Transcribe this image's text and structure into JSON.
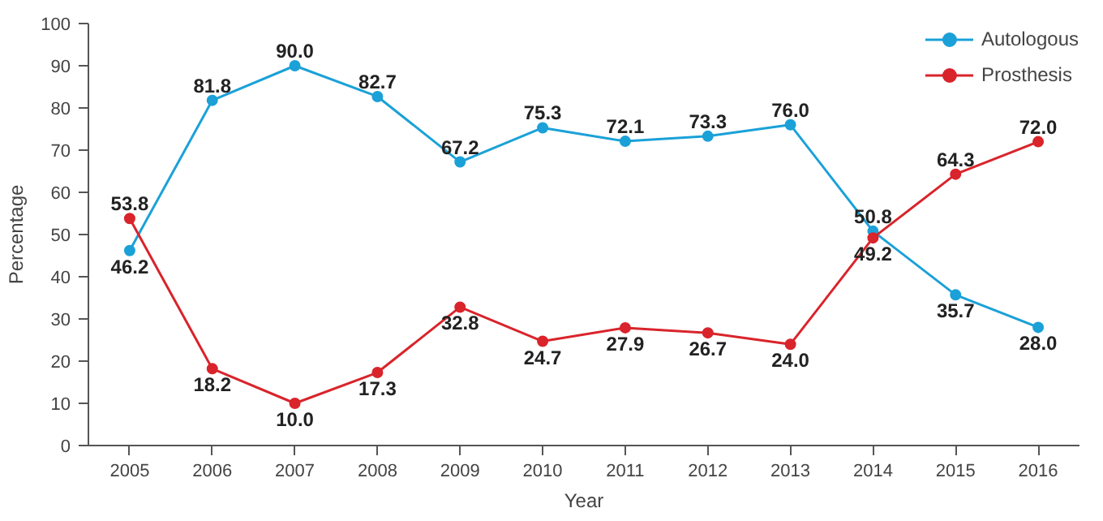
{
  "chart_data": {
    "type": "line",
    "xlabel": "Year",
    "ylabel": "Percentage",
    "categories": [
      "2005",
      "2006",
      "2007",
      "2008",
      "2009",
      "2010",
      "2011",
      "2012",
      "2013",
      "2014",
      "2015",
      "2016"
    ],
    "series": [
      {
        "name": "Autologous",
        "color": "#1ba1d8",
        "values": [
          46.2,
          81.8,
          90.0,
          82.7,
          67.2,
          75.3,
          72.1,
          73.3,
          76.0,
          50.8,
          35.7,
          28.0
        ],
        "value_labels": [
          "46.2",
          "81.8",
          "90.0",
          "82.7",
          "67.2",
          "75.3",
          "72.1",
          "73.3",
          "76.0",
          "50.8",
          "35.7",
          "28.0"
        ]
      },
      {
        "name": "Prosthesis",
        "color": "#d9242b",
        "values": [
          53.8,
          18.2,
          10.0,
          17.3,
          32.8,
          24.7,
          27.9,
          26.7,
          24.0,
          49.2,
          64.3,
          72.0
        ],
        "value_labels": [
          "53.8",
          "18.2",
          "10.0",
          "17.3",
          "32.8",
          "24.7",
          "27.9",
          "26.7",
          "24.0",
          "49.2",
          "64.3",
          "72.0"
        ]
      }
    ],
    "ylim": [
      0,
      100
    ],
    "yticks": [
      0,
      10,
      20,
      30,
      40,
      50,
      60,
      70,
      80,
      90,
      100
    ],
    "grid": false,
    "legend": "top right",
    "marker": "circle",
    "line_style": "solid"
  }
}
